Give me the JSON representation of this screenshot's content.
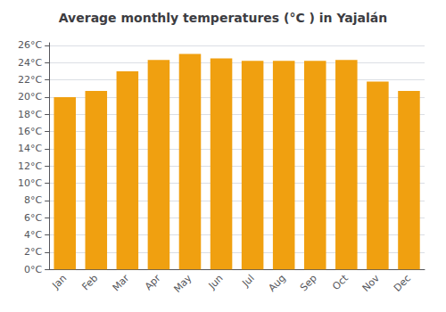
{
  "chart_data": {
    "type": "bar",
    "title": "Average monthly temperatures (°C ) in Yajalán",
    "categories": [
      "Jan",
      "Feb",
      "Mar",
      "Apr",
      "May",
      "Jun",
      "Jul",
      "Aug",
      "Sep",
      "Oct",
      "Nov",
      "Dec"
    ],
    "values": [
      20.0,
      20.7,
      23.0,
      24.3,
      25.0,
      24.5,
      24.2,
      24.2,
      24.2,
      24.3,
      21.8,
      20.7
    ],
    "color": "#F0A010",
    "ylim": [
      0,
      26.3
    ],
    "yticks": [
      {
        "value": 0,
        "label": "0°C"
      },
      {
        "value": 2,
        "label": "2°C"
      },
      {
        "value": 4,
        "label": "4°C"
      },
      {
        "value": 6,
        "label": "6°C"
      },
      {
        "value": 8,
        "label": "8°C"
      },
      {
        "value": 10,
        "label": "10°C"
      },
      {
        "value": 12,
        "label": "12°C"
      },
      {
        "value": 14,
        "label": "14°C"
      },
      {
        "value": 16,
        "label": "16°C"
      },
      {
        "value": 18,
        "label": "18°C"
      },
      {
        "value": 20,
        "label": "20°C"
      },
      {
        "value": 22,
        "label": "22°C"
      },
      {
        "value": 24,
        "label": "24°C"
      },
      {
        "value": 26,
        "label": "26°C"
      }
    ],
    "grid": true
  }
}
